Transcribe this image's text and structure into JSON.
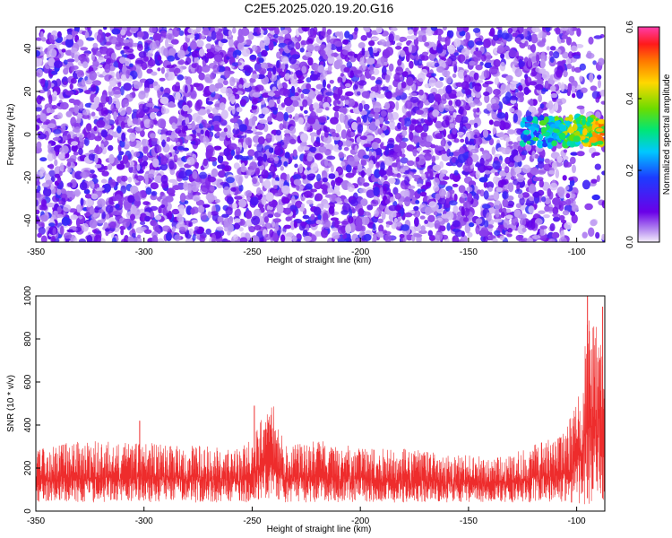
{
  "title": "C2E5.2025.020.19.20.G16",
  "chart_data": [
    {
      "type": "heatmap",
      "xlabel": "Height of straight line (km)",
      "ylabel": "Frequency (Hz)",
      "xlim": [
        -350,
        -87
      ],
      "ylim": [
        -50,
        50
      ],
      "xticks": [
        -350,
        -300,
        -250,
        -200,
        -150,
        -100
      ],
      "yticks": [
        -40,
        -20,
        0,
        20,
        40
      ],
      "colorbar": {
        "label": "Normalized spectral amplitude",
        "range": [
          0.0,
          0.6
        ],
        "ticks": [
          "0.0",
          "0.2",
          "0.4",
          "0.6"
        ],
        "colors": [
          "#f4eefc",
          "#b388f0",
          "#6a00e8",
          "#1c3cff",
          "#00c8ff",
          "#00e676",
          "#6cdc00",
          "#ffd800",
          "#ff7a00",
          "#ff1a1a",
          "#ff3caa"
        ]
      },
      "features": [
        {
          "x_range": [
            -350,
            -100
          ],
          "y_range": [
            -50,
            50
          ],
          "value": 0.06
        },
        {
          "x_range": [
            -125,
            -87
          ],
          "y_range": [
            -5,
            8
          ],
          "value": 0.45
        }
      ]
    },
    {
      "type": "line",
      "xlabel": "Height of straight line (km)",
      "ylabel": "SNR (10 * v/v)",
      "xlim": [
        -350,
        -87
      ],
      "ylim": [
        0,
        1000
      ],
      "xticks": [
        -350,
        -300,
        -250,
        -200,
        -150,
        -100
      ],
      "yticks": [
        0,
        200,
        400,
        600,
        800,
        1000
      ],
      "color": "#ee2c2c",
      "envelope": {
        "x": [
          -350,
          -330,
          -310,
          -300,
          -280,
          -260,
          -250,
          -245,
          -240,
          -235,
          -220,
          -200,
          -180,
          -160,
          -140,
          -130,
          -120,
          -110,
          -105,
          -100,
          -98,
          -95,
          -93,
          -90,
          -87
        ],
        "lower": [
          40,
          40,
          40,
          40,
          40,
          40,
          40,
          60,
          60,
          40,
          40,
          40,
          40,
          40,
          40,
          40,
          40,
          40,
          40,
          30,
          20,
          20,
          20,
          30,
          40
        ],
        "upper": [
          290,
          330,
          320,
          320,
          310,
          290,
          330,
          460,
          490,
          310,
          330,
          300,
          290,
          270,
          250,
          260,
          320,
          340,
          380,
          520,
          600,
          1000,
          860,
          960,
          600
        ]
      },
      "spikes": [
        {
          "x": -302,
          "y": 420
        },
        {
          "x": -249,
          "y": 490
        },
        {
          "x": -95,
          "y": 1000
        },
        {
          "x": -88,
          "y": 950
        }
      ]
    }
  ]
}
